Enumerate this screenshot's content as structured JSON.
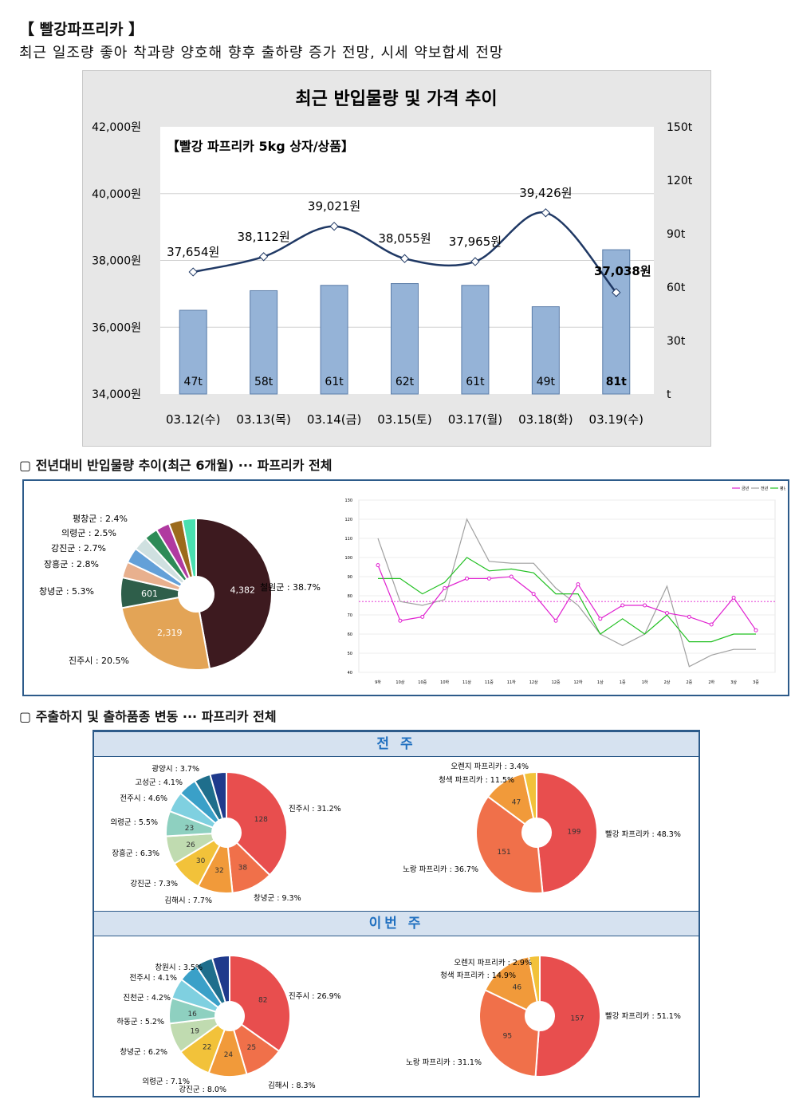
{
  "header": {
    "title": "【 빨강파프리카 】",
    "subtitle": "최근 일조량 좋아 착과량 양호해 향후 출하량 증가 전망, 시세 약보합세 전망"
  },
  "sections": {
    "s2": "▢ 전년대비 반입물량 추이(최근 6개월) ··· 파프리카 전체",
    "s3": "▢ 주출하지 및 출하품종 변동 ··· 파프리카 전체",
    "prev_week": "전 주",
    "this_week": "이번 주"
  },
  "chart_data": [
    {
      "type": "bar",
      "title": "최근 반입물량 및 가격 추이",
      "subtitle": "【빨강 파프리카 5kg 상자/상품】",
      "categories": [
        "03.12(수)",
        "03.13(목)",
        "03.14(금)",
        "03.15(토)",
        "03.17(월)",
        "03.18(화)",
        "03.19(수)"
      ],
      "series": [
        {
          "kind": "bar",
          "axis": "right",
          "values": [
            47,
            58,
            61,
            62,
            61,
            49,
            81
          ],
          "labels": [
            "47t",
            "58t",
            "61t",
            "62t",
            "61t",
            "49t",
            "81t"
          ],
          "color": "#95b3d7"
        },
        {
          "kind": "line",
          "axis": "left",
          "values": [
            37654,
            38112,
            39021,
            38055,
            37965,
            39426,
            37038
          ],
          "labels": [
            "37,654원",
            "38,112원",
            "39,021원",
            "38,055원",
            "37,965원",
            "39,426원",
            "37,038원"
          ],
          "color": "#1f3864"
        }
      ],
      "ylim_left": [
        34000,
        42000
      ],
      "yticks_left": [
        "34,000원",
        "36,000원",
        "38,000원",
        "40,000원",
        "42,000원"
      ],
      "ylim_right": [
        0,
        150
      ],
      "yticks_right": [
        "t",
        "30t",
        "60t",
        "90t",
        "120t",
        "150t"
      ]
    },
    {
      "type": "pie",
      "slices": [
        {
          "label": "철원군 : 38.7%",
          "value": 4382,
          "text": "4,382",
          "color": "#3d1a1f"
        },
        {
          "label": "진주시 : 20.5%",
          "value": 2319,
          "text": "2,319",
          "color": "#e3a456"
        },
        {
          "label": "창녕군 : 5.3%",
          "value": 601,
          "text": "601",
          "color": "#2e5e4a"
        },
        {
          "label": "장흥군 : 2.8%",
          "value": 317,
          "text": "",
          "color": "#e8b08e"
        },
        {
          "label": "강진군 : 2.7%",
          "value": 306,
          "text": "",
          "color": "#63a0d8"
        },
        {
          "label": "의령군 : 2.5%",
          "value": 283,
          "text": "",
          "color": "#cfe0e0"
        },
        {
          "label": "평창군 : 2.4%",
          "value": 272,
          "text": "",
          "color": "#2e8b57"
        },
        {
          "label": "",
          "value": 272,
          "text": "",
          "color": "#b03aa0"
        },
        {
          "label": "",
          "value": 272,
          "text": "",
          "color": "#9c6b1c"
        },
        {
          "label": "",
          "value": 272,
          "text": "",
          "color": "#49e0b0"
        }
      ]
    },
    {
      "type": "line",
      "legend": [
        "금년",
        "전년",
        "평년"
      ],
      "categories": [
        "9하",
        "10상",
        "10중",
        "10하",
        "11상",
        "11중",
        "11하",
        "12상",
        "12중",
        "12하",
        "1상",
        "1중",
        "1하",
        "2상",
        "2중",
        "2하",
        "3상",
        "3중"
      ],
      "series": [
        {
          "name": "금년",
          "color": "#e020d0",
          "values": [
            96,
            67,
            69,
            84,
            89,
            89,
            90,
            81,
            67,
            86,
            68,
            75,
            75,
            71,
            69,
            65,
            79,
            62
          ]
        },
        {
          "name": "전년",
          "color": "#a0a0a0",
          "values": [
            110,
            77,
            75,
            78,
            120,
            98,
            97,
            97,
            84,
            75,
            60,
            54,
            60,
            85,
            43,
            49,
            52,
            52
          ]
        },
        {
          "name": "평년",
          "color": "#22c022",
          "values": [
            89,
            89,
            81,
            87,
            100,
            93,
            94,
            92,
            81,
            81,
            60,
            68,
            60,
            70,
            56,
            56,
            60,
            60
          ]
        }
      ],
      "reference_line": 77,
      "ylim": [
        40,
        130
      ],
      "yticks": [
        "40",
        "50",
        "60",
        "70",
        "80",
        "90",
        "100",
        "110",
        "120",
        "130"
      ]
    },
    {
      "type": "pie",
      "group": "전 주",
      "name": "지역",
      "slices": [
        {
          "label": "진주시 : 31.2%",
          "value": 128,
          "text": "128",
          "color": "#e84e4e"
        },
        {
          "label": "창녕군 : 9.3%",
          "value": 38,
          "text": "38",
          "color": "#f0704a"
        },
        {
          "label": "김해시 : 7.7%",
          "value": 32,
          "text": "32",
          "color": "#f19a3a"
        },
        {
          "label": "강진군 : 7.3%",
          "value": 30,
          "text": "30",
          "color": "#f2c23a"
        },
        {
          "label": "장흥군 : 6.3%",
          "value": 26,
          "text": "26",
          "color": "#c0dbb0"
        },
        {
          "label": "의령군 : 5.5%",
          "value": 23,
          "text": "23",
          "color": "#8ed0c0"
        },
        {
          "label": "전주시 : 4.6%",
          "value": 19,
          "text": "",
          "color": "#7fd0e0"
        },
        {
          "label": "고성군 : 4.1%",
          "value": 17,
          "text": "",
          "color": "#3aa0c8"
        },
        {
          "label": "광양시 : 3.7%",
          "value": 15,
          "text": "",
          "color": "#1f6e8c"
        },
        {
          "label": "",
          "value": 15,
          "text": "",
          "color": "#1f3a8c"
        }
      ]
    },
    {
      "type": "pie",
      "group": "전 주",
      "name": "품종",
      "slices": [
        {
          "label": "빨강 파프리카 : 48.3%",
          "value": 199,
          "text": "199",
          "color": "#e84e4e"
        },
        {
          "label": "노랑 파프리카 : 36.7%",
          "value": 151,
          "text": "151",
          "color": "#f0704a"
        },
        {
          "label": "청색 파프리카 : 11.5%",
          "value": 47,
          "text": "47",
          "color": "#f19a3a"
        },
        {
          "label": "오렌지 파프리카 : 3.4%",
          "value": 14,
          "text": "",
          "color": "#f2c23a"
        }
      ]
    },
    {
      "type": "pie",
      "group": "이번 주",
      "name": "지역",
      "slices": [
        {
          "label": "진주시 : 26.9%",
          "value": 82,
          "text": "82",
          "color": "#e84e4e"
        },
        {
          "label": "김해시 : 8.3%",
          "value": 25,
          "text": "25",
          "color": "#f0704a"
        },
        {
          "label": "강진군 : 8.0%",
          "value": 24,
          "text": "24",
          "color": "#f19a3a"
        },
        {
          "label": "의령군 : 7.1%",
          "value": 22,
          "text": "22",
          "color": "#f2c23a"
        },
        {
          "label": "창녕군 : 6.2%",
          "value": 19,
          "text": "19",
          "color": "#c0dbb0"
        },
        {
          "label": "하동군 : 5.2%",
          "value": 16,
          "text": "16",
          "color": "#8ed0c0"
        },
        {
          "label": "진천군 : 4.2%",
          "value": 13,
          "text": "",
          "color": "#7fd0e0"
        },
        {
          "label": "전주시 : 4.1%",
          "value": 12.5,
          "text": "",
          "color": "#3aa0c8"
        },
        {
          "label": "창원시 : 3.5%",
          "value": 11,
          "text": "",
          "color": "#1f6e8c"
        },
        {
          "label": "",
          "value": 11,
          "text": "",
          "color": "#1f3a8c"
        }
      ]
    },
    {
      "type": "pie",
      "group": "이번 주",
      "name": "품종",
      "slices": [
        {
          "label": "빨강 파프리카 : 51.1%",
          "value": 157,
          "text": "157",
          "color": "#e84e4e"
        },
        {
          "label": "노랑 파프리카 : 31.1%",
          "value": 95,
          "text": "95",
          "color": "#f0704a"
        },
        {
          "label": "청색 파프리카 : 14.9%",
          "value": 46,
          "text": "46",
          "color": "#f19a3a"
        },
        {
          "label": "오렌지 파프리카 : 2.9%",
          "value": 9,
          "text": "",
          "color": "#f2c23a"
        }
      ]
    }
  ]
}
